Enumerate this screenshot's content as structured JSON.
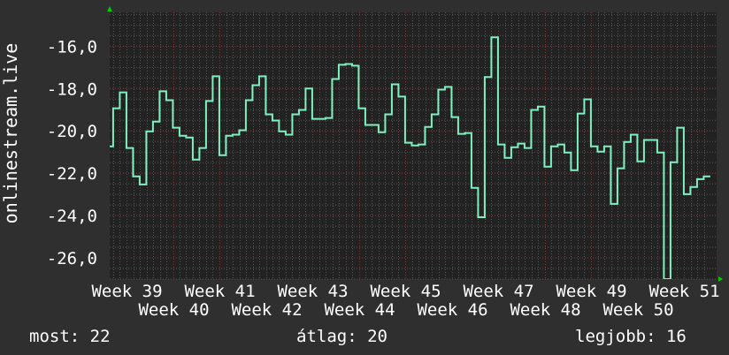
{
  "colors": {
    "background": "#2f2f2f",
    "plot_background": "#222222",
    "line": "#7ff0c0",
    "major_grid": "#7a3a3a",
    "minor_grid": "#555555",
    "arrow": "#00cc00",
    "text": "#ffffff"
  },
  "chart_data": {
    "type": "line",
    "step": true,
    "ylabel": "onlinestream.live",
    "ylim": [
      -27.0,
      -14.4
    ],
    "yticks": [
      -16,
      -18,
      -20,
      -22,
      -24,
      -26
    ],
    "ytick_labels": [
      "-16,0",
      "-18,0",
      "-20,0",
      "-22,0",
      "-24,0",
      "-26,0"
    ],
    "xlim_weeks": [
      38.6,
      51.6
    ],
    "xtick_labels": [
      "Week 39",
      "Week 40",
      "Week 41",
      "Week 42",
      "Week 43",
      "Week 44",
      "Week 45",
      "Week 46",
      "Week 47",
      "Week 48",
      "Week 49",
      "Week 50",
      "Week 51"
    ],
    "xtick_weeks": [
      39,
      40,
      41,
      42,
      43,
      44,
      45,
      46,
      47,
      48,
      49,
      50,
      51
    ],
    "grid": true,
    "series": [
      {
        "start_week": 38.57,
        "step_days": 1,
        "values": [
          -20.73,
          -18.93,
          -18.18,
          -20.81,
          -22.15,
          -22.53,
          -20.02,
          -19.56,
          -18.13,
          -18.55,
          -19.85,
          -20.23,
          -20.31,
          -21.36,
          -20.81,
          -18.59,
          -17.42,
          -21.15,
          -20.23,
          -20.18,
          -19.97,
          -18.55,
          -17.84,
          -17.42,
          -19.22,
          -19.51,
          -20.02,
          -20.18,
          -19.22,
          -19.01,
          -18.0,
          -19.43,
          -19.43,
          -19.39,
          -17.55,
          -16.88,
          -16.84,
          -16.92,
          -18.93,
          -19.72,
          -19.72,
          -20.06,
          -19.22,
          -17.8,
          -18.38,
          -20.56,
          -20.69,
          -20.64,
          -19.81,
          -19.22,
          -18.05,
          -17.92,
          -19.35,
          -20.14,
          -20.1,
          -22.69,
          -24.08,
          -17.46,
          -15.58,
          -20.64,
          -21.27,
          -20.77,
          -20.6,
          -20.81,
          -19.01,
          -18.85,
          -21.69,
          -20.73,
          -20.64,
          -21.02,
          -21.86,
          -19.18,
          -18.51,
          -20.73,
          -20.98,
          -20.73,
          -23.45,
          -21.77,
          -20.52,
          -20.18,
          -21.44,
          -20.43,
          -20.43,
          -21.02,
          -27.0,
          -21.48,
          -19.85,
          -22.99,
          -22.65,
          -22.28,
          -22.15
        ]
      }
    ]
  },
  "legend": {
    "current_label": "most:",
    "current_value": "22",
    "average_label": "átlag:",
    "average_value": "20",
    "max_label": "legjobb:",
    "max_value": "16"
  }
}
